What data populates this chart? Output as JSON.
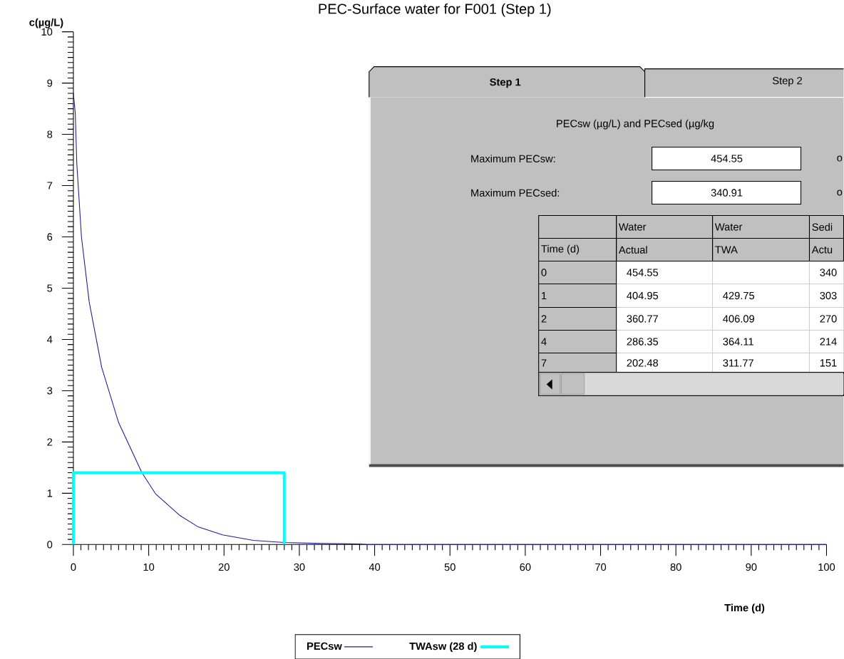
{
  "chart_data": {
    "type": "line",
    "title": "PEC-Surface water for F001 (Step 1)",
    "xlabel": "Time (d)",
    "ylabel": "c(µg/L)",
    "xlim": [
      0,
      100
    ],
    "ylim": [
      0,
      10
    ],
    "xticks": [
      0,
      10,
      20,
      30,
      40,
      50,
      60,
      70,
      80,
      90,
      100
    ],
    "yticks": [
      0,
      1,
      2,
      3,
      4,
      5,
      6,
      7,
      8,
      9,
      10
    ],
    "legend": "bottom",
    "series": [
      {
        "name": "PECsw",
        "color": "#1c1c96",
        "x": [
          0,
          0.25,
          0.45,
          1.07,
          2.1,
          3.75,
          6.0,
          9.1,
          10.9,
          14.2,
          16.5,
          19.8,
          23.9,
          28,
          33,
          38,
          39,
          100
        ],
        "values": [
          8.8,
          8.41,
          7.44,
          6.0,
          4.73,
          3.46,
          2.38,
          1.4,
          0.99,
          0.56,
          0.35,
          0.19,
          0.08,
          0.04,
          0.02,
          0.01,
          0,
          0
        ]
      },
      {
        "name": "TWAsw  (28 d)",
        "color": "#00ffff",
        "x": [
          0,
          0,
          28,
          28
        ],
        "values": [
          0,
          1.4,
          1.4,
          0
        ]
      }
    ],
    "annotations": [
      "Step 1",
      "Step 2",
      "PECsw (µg/L) and PECsed (µg/kg",
      "Maximum PECsw:",
      "454.55",
      "o",
      "Maximum PECsed:",
      "340.91",
      "o",
      "Water",
      "Water",
      "Sedi",
      "Time (d)",
      "Actual",
      "TWA",
      "Actu",
      "0",
      "454.55",
      "340",
      "1",
      "404.95",
      "429.75",
      "303",
      "2",
      "360.77",
      "406.09",
      "270",
      "4",
      "286.35",
      "364.11",
      "214",
      "7",
      "202.48",
      "311.77",
      "151"
    ]
  }
}
